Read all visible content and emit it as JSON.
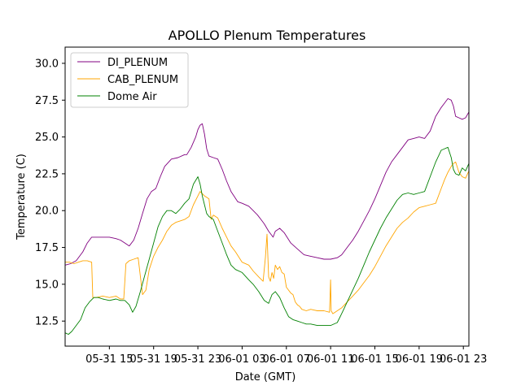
{
  "chart_data": {
    "type": "line",
    "title": "APOLLO Plenum Temperatures",
    "xlabel": "Date (GMT)",
    "ylabel": "Temperature (C)",
    "x_unit": "hours since 05-31 11:00 GMT",
    "xlim": [
      0,
      36.5
    ],
    "ylim": [
      10.8,
      31.1
    ],
    "legend_position": "top-left",
    "x_ticks": [
      {
        "value": 4,
        "label": "05-31 15"
      },
      {
        "value": 8,
        "label": "05-31 19"
      },
      {
        "value": 12,
        "label": "05-31 23"
      },
      {
        "value": 16,
        "label": "06-01 03"
      },
      {
        "value": 20,
        "label": "06-01 07"
      },
      {
        "value": 24,
        "label": "06-01 11"
      },
      {
        "value": 28,
        "label": "06-01 15"
      },
      {
        "value": 32,
        "label": "06-01 19"
      },
      {
        "value": 36,
        "label": "06-01 23"
      }
    ],
    "y_ticks": [
      {
        "value": 12.5,
        "label": "12.5"
      },
      {
        "value": 15.0,
        "label": "15.0"
      },
      {
        "value": 17.5,
        "label": "17.5"
      },
      {
        "value": 20.0,
        "label": "20.0"
      },
      {
        "value": 22.5,
        "label": "22.5"
      },
      {
        "value": 25.0,
        "label": "25.0"
      },
      {
        "value": 27.5,
        "label": "27.5"
      },
      {
        "value": 30.0,
        "label": "30.0"
      }
    ],
    "series": [
      {
        "name": "DI_PLENUM",
        "color": "#800080",
        "x": [
          0,
          0.5,
          1,
          1.6,
          2,
          2.4,
          2.8,
          3.4,
          4,
          4.6,
          5,
          5.4,
          5.8,
          6.2,
          6.6,
          7,
          7.4,
          7.8,
          8.2,
          8.6,
          9,
          9.6,
          10.2,
          10.8,
          11,
          11.4,
          11.8,
          12,
          12.2,
          12.4,
          12.6,
          12.8,
          13,
          13.4,
          13.8,
          14.2,
          14.6,
          15,
          15.6,
          16,
          16.6,
          17,
          17.4,
          17.8,
          18,
          18.4,
          18.8,
          19,
          19.4,
          19.8,
          20.4,
          21,
          21.6,
          22.2,
          22.8,
          23.4,
          24,
          24.6,
          25,
          25.5,
          26,
          26.5,
          27,
          27.5,
          28,
          28.5,
          29,
          29.5,
          30,
          30.5,
          31,
          31.5,
          32,
          32.5,
          33,
          33.5,
          34,
          34.3,
          34.6,
          34.9,
          35.1,
          35.3,
          35.6,
          35.9,
          36.2,
          36.5
        ],
        "values": [
          16.3,
          16.4,
          16.6,
          17.2,
          17.8,
          18.2,
          18.2,
          18.2,
          18.2,
          18.1,
          18.0,
          17.8,
          17.6,
          18.0,
          18.8,
          19.8,
          20.8,
          21.3,
          21.5,
          22.3,
          23.0,
          23.5,
          23.6,
          23.8,
          23.8,
          24.3,
          25.0,
          25.5,
          25.8,
          25.9,
          25.2,
          24.2,
          23.7,
          23.6,
          23.5,
          22.8,
          22.0,
          21.3,
          20.6,
          20.5,
          20.3,
          20.0,
          19.7,
          19.3,
          19.1,
          18.6,
          18.2,
          18.6,
          18.8,
          18.5,
          17.8,
          17.4,
          17.0,
          16.9,
          16.8,
          16.7,
          16.7,
          16.8,
          17.0,
          17.5,
          18.0,
          18.6,
          19.3,
          20.0,
          20.8,
          21.7,
          22.6,
          23.3,
          23.8,
          24.3,
          24.8,
          24.9,
          25.0,
          24.9,
          25.4,
          26.4,
          27.0,
          27.3,
          27.6,
          27.5,
          27.1,
          26.4,
          26.3,
          26.2,
          26.3,
          26.7
        ]
      },
      {
        "name": "CAB_PLENUM",
        "color": "#ffa500",
        "x": [
          0,
          0.4,
          0.8,
          1.2,
          1.6,
          2,
          2.4,
          2.5,
          2.8,
          3.4,
          4,
          4.6,
          5,
          5.3,
          5.5,
          5.8,
          6.2,
          6.6,
          7,
          7.3,
          7.6,
          8,
          8.4,
          8.8,
          9.2,
          9.6,
          10,
          10.4,
          10.8,
          11.2,
          11.6,
          12,
          12.2,
          12.6,
          13,
          13.2,
          13.4,
          13.6,
          13.8,
          14.2,
          14.6,
          15,
          15.4,
          16,
          16.6,
          17,
          17.5,
          17.9,
          18.1,
          18.25,
          18.4,
          18.55,
          18.7,
          18.85,
          19,
          19.2,
          19.4,
          19.6,
          19.8,
          20,
          20.2,
          20.4,
          20.6,
          20.8,
          21,
          21.2,
          21.4,
          21.8,
          22.2,
          22.8,
          23.4,
          23.9,
          24,
          24.05,
          24.2,
          24.6,
          25,
          25.5,
          26,
          26.5,
          27,
          27.5,
          28,
          28.5,
          29,
          29.5,
          30,
          30.5,
          31,
          31.5,
          32,
          32.5,
          33,
          33.5,
          34,
          34.3,
          34.6,
          34.9,
          35.1,
          35.3,
          35.6,
          35.9,
          36.2,
          36.5
        ],
        "values": [
          16.5,
          16.5,
          16.4,
          16.5,
          16.6,
          16.6,
          16.5,
          14.1,
          14.1,
          14.2,
          14.1,
          14.2,
          14.0,
          14.0,
          16.4,
          16.6,
          16.7,
          16.8,
          14.3,
          14.6,
          16.0,
          16.9,
          17.5,
          18.0,
          18.6,
          19.0,
          19.2,
          19.3,
          19.4,
          19.6,
          20.4,
          21.0,
          21.3,
          21.0,
          20.8,
          19.4,
          19.7,
          19.6,
          19.5,
          18.8,
          18.2,
          17.6,
          17.2,
          16.5,
          16.3,
          15.9,
          15.5,
          15.2,
          16.8,
          18.4,
          15.5,
          15.2,
          15.8,
          15.4,
          16.3,
          16.0,
          16.2,
          15.8,
          15.7,
          14.8,
          14.6,
          14.4,
          14.3,
          13.8,
          13.6,
          13.5,
          13.3,
          13.2,
          13.3,
          13.2,
          13.2,
          13.1,
          15.3,
          13.2,
          13.0,
          13.2,
          13.4,
          13.8,
          14.2,
          14.6,
          15.1,
          15.6,
          16.2,
          16.9,
          17.6,
          18.2,
          18.8,
          19.2,
          19.5,
          19.9,
          20.2,
          20.3,
          20.4,
          20.5,
          21.5,
          22.1,
          22.6,
          23.0,
          23.2,
          23.3,
          22.6,
          22.3,
          22.2,
          22.7
        ]
      },
      {
        "name": "Dome Air",
        "color": "#008000",
        "x": [
          0,
          0.3,
          0.6,
          1,
          1.4,
          1.8,
          2.2,
          2.6,
          3,
          3.4,
          4,
          4.6,
          5,
          5.4,
          5.8,
          6.1,
          6.4,
          6.8,
          7.2,
          7.6,
          8,
          8.4,
          8.8,
          9.2,
          9.6,
          10,
          10.4,
          10.8,
          11.2,
          11.6,
          12,
          12.2,
          12.4,
          12.6,
          12.8,
          13,
          13.4,
          13.8,
          14.2,
          14.6,
          15,
          15.4,
          16,
          16.6,
          17,
          17.5,
          18,
          18.4,
          18.7,
          19,
          19.4,
          19.8,
          20.2,
          20.6,
          21,
          21.4,
          21.8,
          22.2,
          22.8,
          23.4,
          24,
          24.6,
          25,
          25.5,
          26,
          26.5,
          27,
          27.5,
          28,
          28.5,
          29,
          29.5,
          30,
          30.5,
          31,
          31.5,
          32,
          32.5,
          33,
          33.5,
          34,
          34.3,
          34.6,
          34.9,
          35.1,
          35.3,
          35.6,
          35.9,
          36.2,
          36.5
        ],
        "values": [
          11.7,
          11.6,
          11.8,
          12.2,
          12.6,
          13.4,
          13.8,
          14.1,
          14.1,
          14.0,
          13.9,
          14.0,
          13.9,
          13.9,
          13.6,
          13.1,
          13.5,
          14.5,
          15.6,
          16.7,
          17.8,
          18.9,
          19.6,
          20.0,
          20.0,
          19.8,
          20.1,
          20.5,
          20.8,
          21.8,
          22.3,
          21.8,
          21.0,
          20.4,
          19.8,
          19.6,
          19.4,
          18.6,
          17.8,
          17.0,
          16.3,
          16.0,
          15.8,
          15.3,
          15.0,
          14.5,
          13.9,
          13.7,
          14.3,
          14.5,
          14.1,
          13.4,
          12.8,
          12.6,
          12.5,
          12.4,
          12.3,
          12.3,
          12.2,
          12.2,
          12.2,
          12.4,
          13.0,
          13.8,
          14.6,
          15.4,
          16.3,
          17.2,
          18.0,
          18.8,
          19.5,
          20.1,
          20.7,
          21.1,
          21.2,
          21.1,
          21.2,
          21.3,
          22.3,
          23.3,
          24.1,
          24.2,
          24.3,
          23.6,
          22.8,
          22.5,
          22.4,
          22.9,
          22.7,
          23.2
        ]
      }
    ]
  }
}
